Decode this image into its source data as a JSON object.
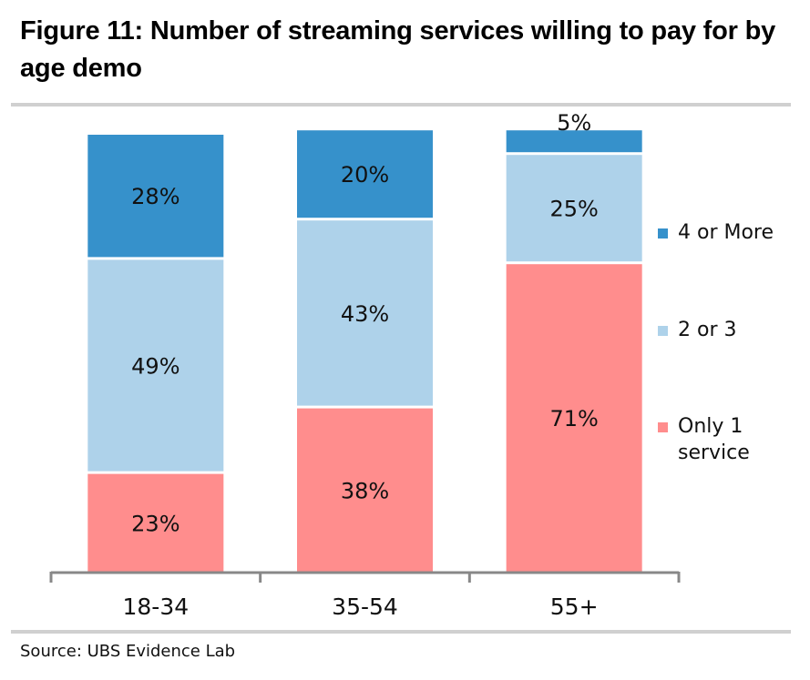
{
  "figure": {
    "title": "Figure 11: Number of streaming services willing to pay for by age demo",
    "source": "Source:  UBS Evidence Lab"
  },
  "chart_data": {
    "type": "bar",
    "stacked": true,
    "title": "Figure 11: Number of streaming services willing to pay for by age demo",
    "xlabel": "",
    "ylabel": "",
    "ylim": [
      0,
      100
    ],
    "grid": false,
    "legend_position": "right",
    "categories": [
      "18-34",
      "35-54",
      "55+"
    ],
    "series": [
      {
        "name": "Only 1 service",
        "legend_lines": [
          "Only 1",
          "service"
        ],
        "color": "#ff8d8d",
        "values": [
          23,
          38,
          71
        ],
        "labels": [
          "23%",
          "38%",
          "71%"
        ]
      },
      {
        "name": "2 or 3",
        "legend_lines": [
          "2 or 3"
        ],
        "color": "#aed2ea",
        "values": [
          49,
          43,
          25
        ],
        "labels": [
          "49%",
          "43%",
          "25%"
        ]
      },
      {
        "name": "4 or More",
        "legend_lines": [
          "4 or More"
        ],
        "color": "#3691cb",
        "values": [
          28,
          20,
          5
        ],
        "labels": [
          "28%",
          "20%",
          "5%"
        ]
      }
    ],
    "axis_color": "#888888"
  }
}
